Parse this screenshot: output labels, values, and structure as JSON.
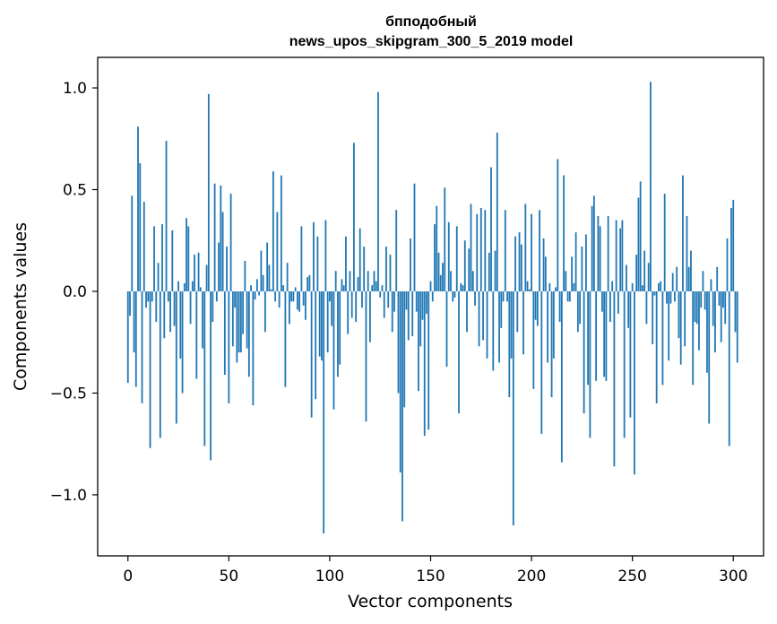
{
  "chart_data": {
    "type": "bar",
    "title_line1": "бпподобный",
    "title_line2": "news_upos_skipgram_300_5_2019 model",
    "xlabel": "Vector components",
    "ylabel": "Components values",
    "xlim": [
      -15,
      315
    ],
    "ylim": [
      -1.3,
      1.15
    ],
    "x_ticks": [
      0,
      50,
      100,
      150,
      200,
      250,
      300
    ],
    "x_tick_labels": [
      "0",
      "50",
      "100",
      "150",
      "200",
      "250",
      "300"
    ],
    "y_ticks": [
      -1.0,
      -0.5,
      0.0,
      0.5,
      1.0
    ],
    "y_tick_labels": [
      "−1.0",
      "−0.5",
      "0.0",
      "0.5",
      "1.0"
    ],
    "grid": false,
    "bar_color": "#1f77b4",
    "values": [
      -0.45,
      -0.12,
      0.47,
      -0.3,
      -0.47,
      0.81,
      0.63,
      -0.55,
      0.44,
      -0.08,
      -0.05,
      -0.77,
      -0.05,
      0.32,
      -0.15,
      0.14,
      -0.72,
      0.33,
      -0.23,
      0.74,
      -0.05,
      -0.2,
      0.3,
      -0.17,
      -0.65,
      0.05,
      -0.33,
      -0.5,
      0.04,
      0.36,
      0.32,
      -0.16,
      0.05,
      0.18,
      -0.43,
      0.19,
      0.02,
      -0.28,
      -0.76,
      0.13,
      0.97,
      -0.83,
      -0.15,
      0.53,
      -0.05,
      0.24,
      0.52,
      0.39,
      -0.41,
      0.22,
      -0.55,
      0.48,
      -0.27,
      -0.08,
      -0.35,
      -0.3,
      -0.3,
      -0.21,
      0.15,
      -0.28,
      -0.42,
      0.03,
      -0.56,
      -0.04,
      0.06,
      -0.02,
      0.2,
      0.08,
      -0.2,
      0.24,
      0.13,
      0.01,
      0.59,
      -0.05,
      0.39,
      -0.08,
      0.57,
      0.03,
      -0.47,
      0.14,
      -0.16,
      -0.05,
      -0.05,
      0.02,
      -0.09,
      -0.1,
      0.32,
      -0.07,
      -0.14,
      0.07,
      0.08,
      -0.62,
      0.34,
      -0.53,
      0.27,
      -0.32,
      -0.34,
      -1.19,
      0.35,
      -0.3,
      -0.05,
      -0.17,
      -0.58,
      0.1,
      -0.42,
      -0.36,
      0.06,
      0.03,
      0.27,
      -0.21,
      0.1,
      -0.13,
      0.73,
      -0.15,
      0.07,
      0.31,
      -0.08,
      0.22,
      -0.64,
      0.1,
      -0.25,
      0.03,
      0.1,
      0.05,
      0.98,
      -0.03,
      0.03,
      -0.13,
      0.22,
      -0.08,
      0.18,
      -0.2,
      -0.1,
      0.4,
      -0.5,
      -0.89,
      -1.13,
      -0.57,
      -0.09,
      -0.24,
      0.26,
      -0.22,
      0.53,
      -0.1,
      -0.49,
      -0.27,
      -0.14,
      -0.71,
      -0.11,
      -0.68,
      0.05,
      -0.05,
      0.33,
      0.42,
      0.19,
      0.08,
      0.14,
      0.51,
      -0.37,
      0.34,
      0.1,
      -0.05,
      -0.03,
      0.32,
      -0.6,
      0.04,
      0.03,
      0.25,
      -0.2,
      0.21,
      0.43,
      0.1,
      -0.07,
      0.38,
      -0.27,
      0.41,
      -0.24,
      0.4,
      -0.33,
      0.19,
      0.61,
      -0.39,
      0.2,
      0.78,
      -0.35,
      -0.18,
      -0.05,
      0.4,
      -0.05,
      -0.52,
      -0.33,
      -1.15,
      0.27,
      -0.2,
      0.29,
      0.23,
      -0.31,
      0.43,
      0.05,
      0.01,
      0.38,
      -0.48,
      -0.14,
      -0.17,
      0.4,
      -0.7,
      0.26,
      0.17,
      -0.35,
      0.04,
      -0.52,
      -0.33,
      0.02,
      0.65,
      -0.15,
      -0.84,
      0.57,
      0.1,
      -0.05,
      -0.05,
      0.17,
      0.04,
      0.29,
      -0.2,
      -0.16,
      0.22,
      -0.6,
      0.28,
      -0.46,
      -0.72,
      0.42,
      0.47,
      -0.44,
      0.37,
      0.32,
      -0.1,
      -0.42,
      -0.44,
      0.37,
      -0.15,
      0.05,
      -0.86,
      0.35,
      -0.11,
      0.31,
      0.35,
      -0.72,
      0.13,
      -0.18,
      -0.62,
      0.04,
      -0.9,
      0.18,
      0.46,
      0.54,
      0.03,
      0.2,
      -0.16,
      0.14,
      1.03,
      -0.26,
      -0.02,
      -0.55,
      0.04,
      0.05,
      -0.46,
      0.48,
      -0.06,
      -0.34,
      -0.06,
      0.09,
      -0.05,
      0.12,
      -0.23,
      -0.36,
      0.57,
      -0.27,
      0.37,
      0.12,
      0.2,
      -0.46,
      -0.15,
      -0.16,
      -0.29,
      -0.08,
      0.1,
      -0.09,
      -0.4,
      -0.65,
      0.06,
      -0.17,
      -0.3,
      0.12,
      -0.07,
      -0.25,
      -0.08,
      -0.16,
      0.26,
      -0.76,
      0.41,
      0.45,
      -0.2,
      -0.35
    ]
  }
}
